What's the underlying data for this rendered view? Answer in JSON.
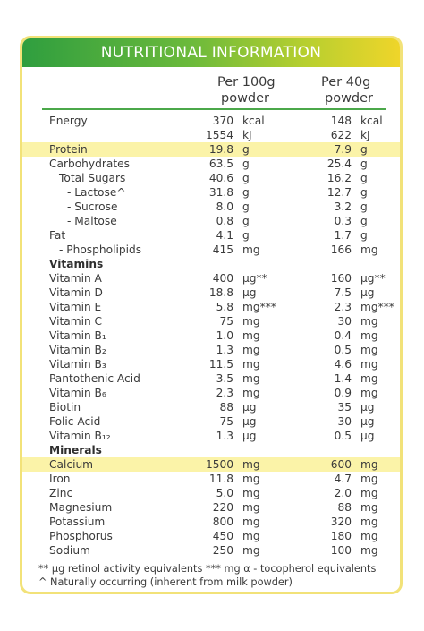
{
  "title": "NUTRITIONAL INFORMATION",
  "columns": {
    "per100": [
      "Per 100g",
      "powder"
    ],
    "per40": [
      "Per 40g",
      "powder"
    ]
  },
  "rows": [
    {
      "label": "Energy",
      "indent": 0,
      "v1": "370",
      "u1": "kcal",
      "v2": "148",
      "u2": "kcal"
    },
    {
      "label": "",
      "indent": 0,
      "v1": "1554",
      "u1": "kJ",
      "v2": "622",
      "u2": "kJ"
    },
    {
      "label": "Protein",
      "indent": 0,
      "highlight": true,
      "v1": "19.8",
      "u1": "g",
      "v2": "7.9",
      "u2": "g"
    },
    {
      "label": "Carbohydrates",
      "indent": 0,
      "v1": "63.5",
      "u1": "g",
      "v2": "25.4",
      "u2": "g"
    },
    {
      "label": "Total Sugars",
      "indent": 1,
      "v1": "40.6",
      "u1": "g",
      "v2": "16.2",
      "u2": "g"
    },
    {
      "label": "- Lactose^",
      "indent": 2,
      "v1": "31.8",
      "u1": "g",
      "v2": "12.7",
      "u2": "g"
    },
    {
      "label": "- Sucrose",
      "indent": 2,
      "v1": "8.0",
      "u1": "g",
      "v2": "3.2",
      "u2": "g"
    },
    {
      "label": "- Maltose",
      "indent": 2,
      "v1": "0.8",
      "u1": "g",
      "v2": "0.3",
      "u2": "g"
    },
    {
      "label": "Fat",
      "indent": 0,
      "v1": "4.1",
      "u1": "g",
      "v2": "1.7",
      "u2": "g"
    },
    {
      "label": "- Phospholipids",
      "indent": 1,
      "v1": "415",
      "u1": "mg",
      "v2": "166",
      "u2": "mg"
    },
    {
      "label": "Vitamins",
      "section": true
    },
    {
      "label": "Vitamin A",
      "indent": 0,
      "v1": "400",
      "u1": "µg**",
      "v2": "160",
      "u2": "µg**"
    },
    {
      "label": "Vitamin D",
      "indent": 0,
      "v1": "18.8",
      "u1": "µg",
      "v2": "7.5",
      "u2": "µg"
    },
    {
      "label": "Vitamin E",
      "indent": 0,
      "v1": "5.8",
      "u1": "mg***",
      "v2": "2.3",
      "u2": "mg***"
    },
    {
      "label": "Vitamin C",
      "indent": 0,
      "v1": "75",
      "u1": "mg",
      "v2": "30",
      "u2": "mg"
    },
    {
      "label": "Vitamin B₁",
      "indent": 0,
      "v1": "1.0",
      "u1": "mg",
      "v2": "0.4",
      "u2": "mg"
    },
    {
      "label": "Vitamin B₂",
      "indent": 0,
      "v1": "1.3",
      "u1": "mg",
      "v2": "0.5",
      "u2": "mg"
    },
    {
      "label": "Vitamin B₃",
      "indent": 0,
      "v1": "11.5",
      "u1": "mg",
      "v2": "4.6",
      "u2": "mg"
    },
    {
      "label": "Pantothenic Acid",
      "indent": 0,
      "v1": "3.5",
      "u1": "mg",
      "v2": "1.4",
      "u2": "mg"
    },
    {
      "label": "Vitamin B₆",
      "indent": 0,
      "v1": "2.3",
      "u1": "mg",
      "v2": "0.9",
      "u2": "mg"
    },
    {
      "label": "Biotin",
      "indent": 0,
      "v1": "88",
      "u1": "µg",
      "v2": "35",
      "u2": "µg"
    },
    {
      "label": "Folic Acid",
      "indent": 0,
      "v1": "75",
      "u1": "µg",
      "v2": "30",
      "u2": "µg"
    },
    {
      "label": "Vitamin B₁₂",
      "indent": 0,
      "v1": "1.3",
      "u1": "µg",
      "v2": "0.5",
      "u2": "µg"
    },
    {
      "label": "Minerals",
      "section": true
    },
    {
      "label": "Calcium",
      "indent": 0,
      "highlight": true,
      "v1": "1500",
      "u1": "mg",
      "v2": "600",
      "u2": "mg"
    },
    {
      "label": "Iron",
      "indent": 0,
      "v1": "11.8",
      "u1": "mg",
      "v2": "4.7",
      "u2": "mg"
    },
    {
      "label": "Zinc",
      "indent": 0,
      "v1": "5.0",
      "u1": "mg",
      "v2": "2.0",
      "u2": "mg"
    },
    {
      "label": "Magnesium",
      "indent": 0,
      "v1": "220",
      "u1": "mg",
      "v2": "88",
      "u2": "mg"
    },
    {
      "label": "Potassium",
      "indent": 0,
      "v1": "800",
      "u1": "mg",
      "v2": "320",
      "u2": "mg"
    },
    {
      "label": "Phosphorus",
      "indent": 0,
      "v1": "450",
      "u1": "mg",
      "v2": "180",
      "u2": "mg"
    },
    {
      "label": "Sodium",
      "indent": 0,
      "v1": "250",
      "u1": "mg",
      "v2": "100",
      "u2": "mg"
    }
  ],
  "footnotes": [
    "** µg retinol activity equivalents    *** mg α - tocopherol equivalents",
    "^ Naturally occurring (inherent from milk powder)"
  ],
  "colors": {
    "header_gradient": [
      "#2f9e3f",
      "#6cba3b",
      "#b7cf2f",
      "#efd52a"
    ],
    "border": "#f2e279",
    "highlight": "#fbf3a8",
    "rule": "#4ba84a"
  }
}
